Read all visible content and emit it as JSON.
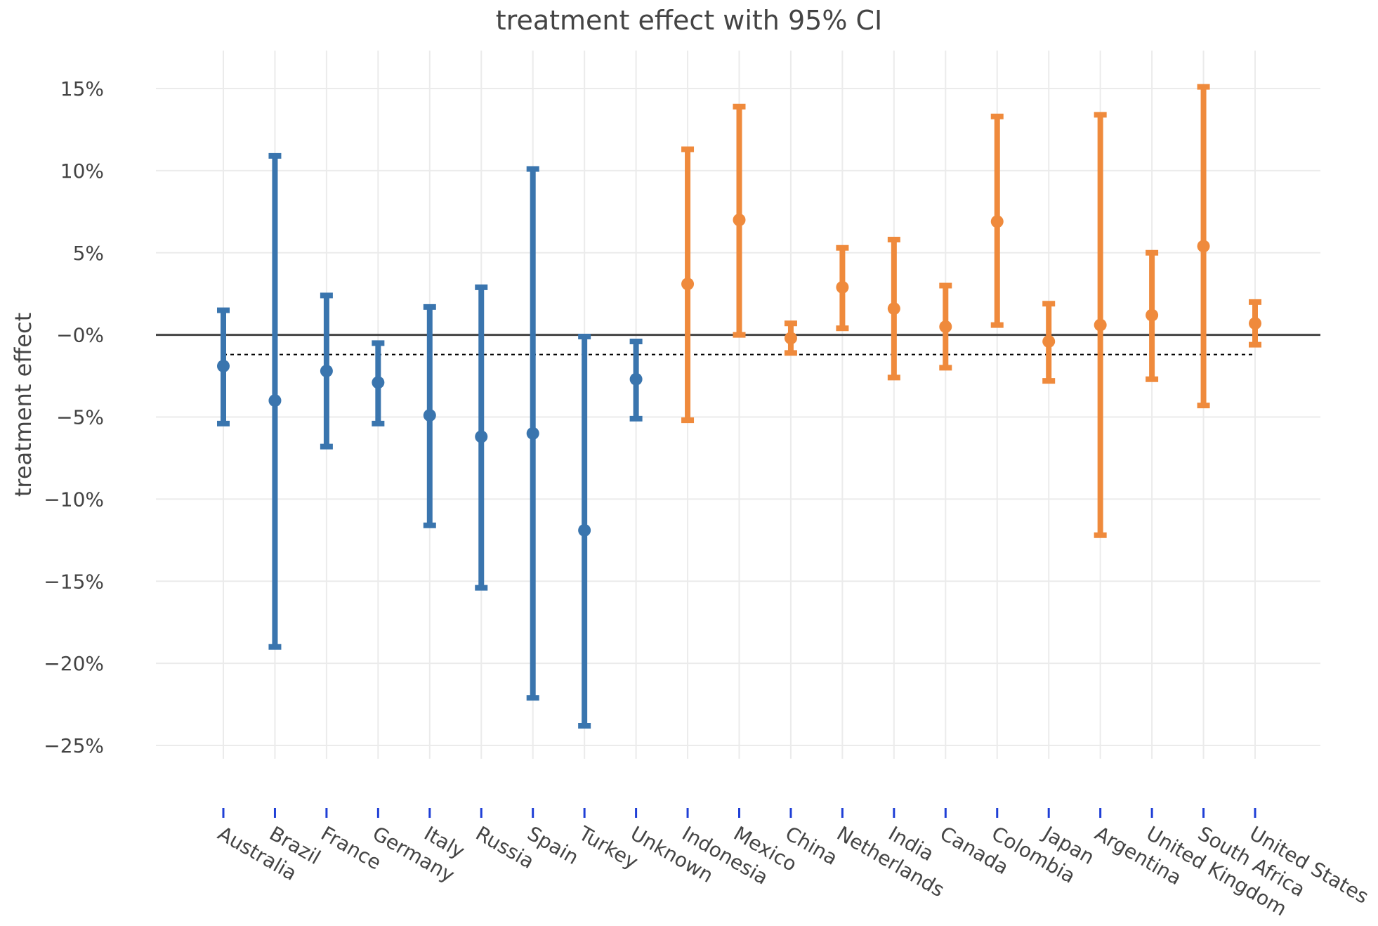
{
  "chart_data": {
    "type": "errorbar",
    "title": "treatment effect with 95% CI",
    "xlabel": "",
    "ylabel": "treatment effect",
    "ylim": [
      -27.3,
      17.5
    ],
    "y_ticks": [
      {
        "value": 15,
        "label": "15%"
      },
      {
        "value": 10,
        "label": "10%"
      },
      {
        "value": 5,
        "label": "5%"
      },
      {
        "value": 0,
        "label": "−0%"
      },
      {
        "value": -5,
        "label": "−5%"
      },
      {
        "value": -10,
        "label": "−10%"
      },
      {
        "value": -15,
        "label": "−15%"
      },
      {
        "value": -20,
        "label": "−20%"
      },
      {
        "value": -25,
        "label": "−25%"
      }
    ],
    "zero_line": 0,
    "reference_line": -1.2,
    "colors": {
      "group_a": "#3a75ae",
      "group_b": "#ef8a3c",
      "grid": "#ebebeb",
      "axis": "#444444",
      "tick_marker": "#1f3fd6"
    },
    "points": [
      {
        "label": "Australia",
        "estimate": -1.9,
        "lower": -5.4,
        "upper": 1.5,
        "group": "group_a"
      },
      {
        "label": "Brazil",
        "estimate": -4.0,
        "lower": -19.0,
        "upper": 10.9,
        "group": "group_a"
      },
      {
        "label": "France",
        "estimate": -2.2,
        "lower": -6.8,
        "upper": 2.4,
        "group": "group_a"
      },
      {
        "label": "Germany",
        "estimate": -2.9,
        "lower": -5.4,
        "upper": -0.5,
        "group": "group_a"
      },
      {
        "label": "Italy",
        "estimate": -4.9,
        "lower": -11.6,
        "upper": 1.7,
        "group": "group_a"
      },
      {
        "label": "Russia",
        "estimate": -6.2,
        "lower": -15.4,
        "upper": 2.9,
        "group": "group_a"
      },
      {
        "label": "Spain",
        "estimate": -6.0,
        "lower": -22.1,
        "upper": 10.1,
        "group": "group_a"
      },
      {
        "label": "Turkey",
        "estimate": -11.9,
        "lower": -23.8,
        "upper": -0.1,
        "group": "group_a"
      },
      {
        "label": "Unknown",
        "estimate": -2.7,
        "lower": -5.1,
        "upper": -0.4,
        "group": "group_a"
      },
      {
        "label": "Indonesia",
        "estimate": 3.1,
        "lower": -5.2,
        "upper": 11.3,
        "group": "group_b"
      },
      {
        "label": "Mexico",
        "estimate": 7.0,
        "lower": 0.0,
        "upper": 13.9,
        "group": "group_b"
      },
      {
        "label": "China",
        "estimate": -0.2,
        "lower": -1.1,
        "upper": 0.7,
        "group": "group_b"
      },
      {
        "label": "Netherlands",
        "estimate": 2.9,
        "lower": 0.4,
        "upper": 5.3,
        "group": "group_b"
      },
      {
        "label": "India",
        "estimate": 1.6,
        "lower": -2.6,
        "upper": 5.8,
        "group": "group_b"
      },
      {
        "label": "Canada",
        "estimate": 0.5,
        "lower": -2.0,
        "upper": 3.0,
        "group": "group_b"
      },
      {
        "label": "Colombia",
        "estimate": 6.9,
        "lower": 0.6,
        "upper": 13.3,
        "group": "group_b"
      },
      {
        "label": "Japan",
        "estimate": -0.4,
        "lower": -2.8,
        "upper": 1.9,
        "group": "group_b"
      },
      {
        "label": "Argentina",
        "estimate": 0.6,
        "lower": -12.2,
        "upper": 13.4,
        "group": "group_b"
      },
      {
        "label": "United Kingdom",
        "estimate": 1.2,
        "lower": -2.7,
        "upper": 5.0,
        "group": "group_b"
      },
      {
        "label": "South Africa",
        "estimate": 5.4,
        "lower": -4.3,
        "upper": 15.1,
        "group": "group_b"
      },
      {
        "label": "United States",
        "estimate": 0.7,
        "lower": -0.6,
        "upper": 2.0,
        "group": "group_b"
      }
    ]
  }
}
